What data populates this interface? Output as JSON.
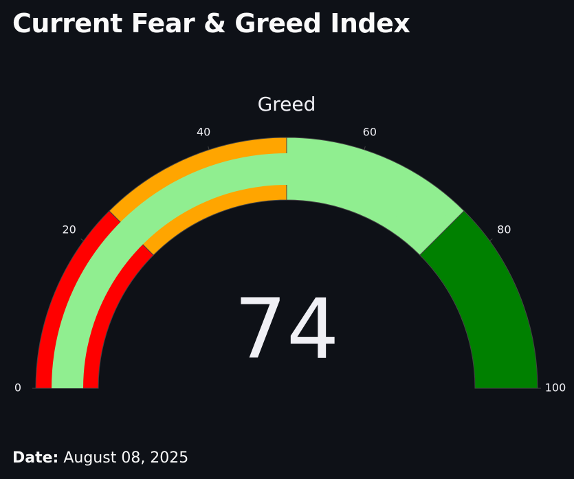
{
  "header": {
    "title": "Current Fear & Greed Index"
  },
  "chart_data": {
    "type": "gauge",
    "title": "Greed",
    "value": 74,
    "range": [
      0,
      100
    ],
    "ticks": [
      0,
      20,
      40,
      60,
      80,
      100
    ],
    "bar_color": "#90ee90",
    "steps": [
      {
        "range": [
          0,
          25
        ],
        "color": "#ff0000"
      },
      {
        "range": [
          25,
          50
        ],
        "color": "#ffa500"
      },
      {
        "range": [
          50,
          75
        ],
        "color": "#90ee90"
      },
      {
        "range": [
          75,
          100
        ],
        "color": "#008000"
      }
    ]
  },
  "footer": {
    "label": "Date:",
    "value": "August 08, 2025"
  }
}
